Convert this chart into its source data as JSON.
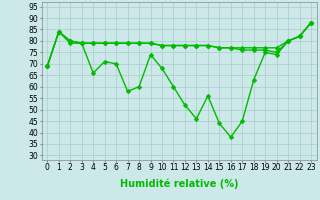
{
  "xlabel": "Humidité relative (%)",
  "bg_color": "#cce8e8",
  "grid_color": "#aacccc",
  "line_color": "#00bb00",
  "markersize": 2.5,
  "linewidth": 1.0,
  "x": [
    0,
    1,
    2,
    3,
    4,
    5,
    6,
    7,
    8,
    9,
    10,
    11,
    12,
    13,
    14,
    15,
    16,
    17,
    18,
    19,
    20,
    21,
    22,
    23
  ],
  "series": [
    [
      69,
      84,
      80,
      79,
      66,
      71,
      70,
      58,
      60,
      74,
      68,
      60,
      52,
      46,
      56,
      44,
      38,
      45,
      63,
      75,
      74,
      80,
      82,
      88
    ],
    [
      69,
      84,
      80,
      79,
      79,
      79,
      79,
      79,
      79,
      79,
      78,
      78,
      78,
      78,
      78,
      77,
      77,
      77,
      77,
      77,
      77,
      80,
      82,
      88
    ],
    [
      69,
      84,
      79,
      79,
      79,
      79,
      79,
      79,
      79,
      79,
      78,
      78,
      78,
      78,
      78,
      77,
      77,
      76,
      76,
      76,
      75,
      80,
      82,
      88
    ]
  ],
  "ylim": [
    28,
    97
  ],
  "yticks": [
    30,
    35,
    40,
    45,
    50,
    55,
    60,
    65,
    70,
    75,
    80,
    85,
    90,
    95
  ],
  "xticks": [
    0,
    1,
    2,
    3,
    4,
    5,
    6,
    7,
    8,
    9,
    10,
    11,
    12,
    13,
    14,
    15,
    16,
    17,
    18,
    19,
    20,
    21,
    22,
    23
  ],
  "xlabel_fontsize": 7,
  "tick_fontsize": 5.5
}
